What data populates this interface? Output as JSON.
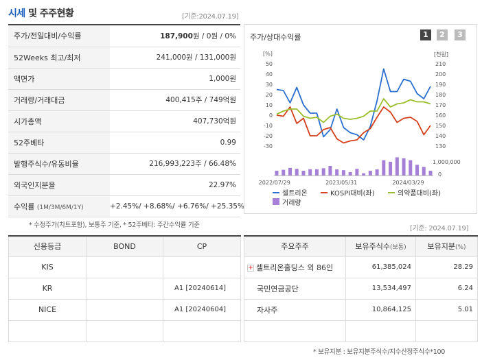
{
  "header": {
    "title_part1": "시세",
    "title_part2": " 및 주주현황",
    "date": "[기준:2024.07.19]"
  },
  "info": [
    {
      "label": "주가/전일대비/수익률",
      "value_bold": "187,900",
      "value_rest": "원 / 0원 / 0%"
    },
    {
      "label": "52Weeks 최고/최저",
      "value": "241,000원 / 131,000원"
    },
    {
      "label": "액면가",
      "value": "1,000원"
    },
    {
      "label": "거래량/거래대금",
      "value": "400,415주 / 749억원"
    },
    {
      "label": "시가총액",
      "value": "407,730억원"
    },
    {
      "label": "52주베타",
      "value": "0.99"
    },
    {
      "label": "발행주식수/유동비율",
      "value": "216,993,223주 / 66.48%"
    },
    {
      "label": "외국인지분율",
      "value": "22.97%"
    },
    {
      "label": "수익률",
      "label_small": "(1M/3M/6M/1Y)",
      "value": "+2.45%/ +8.68%/ +6.76%/ +25.35%"
    }
  ],
  "footnote": "* 수정주가(차트포함), 보통주 기준, * 52주베타: 주간수익률 기준",
  "chart": {
    "title": "주가/상대수익률",
    "tabs": [
      "1",
      "2",
      "3"
    ],
    "left_unit": "[%]",
    "right_unit": "[천원]",
    "volume_label": "1,000,000",
    "volume_zero": "0",
    "left_ticks": [
      "50",
      "40",
      "30",
      "20",
      "10",
      "0",
      "-10",
      "-20",
      "-30"
    ],
    "right_ticks": [
      "210",
      "200",
      "190",
      "180",
      "170",
      "160",
      "150",
      "140",
      "130"
    ],
    "x_ticks": [
      "2022/07/29",
      "2023/05/31",
      "2024/03/29"
    ],
    "legend": [
      "셀트리온",
      "KOSPI대비(좌)",
      "의약품대비(좌)",
      "거래량"
    ],
    "colors": {
      "price": "#2a6fcf",
      "kospi": "#d4401a",
      "pharma": "#9bbf2a",
      "volume": "#a67fd6"
    }
  },
  "chart_data": {
    "type": "line",
    "series": [
      {
        "name": "셀트리온",
        "axis": "right",
        "values": [
          185,
          184,
          172,
          187,
          170,
          162,
          162,
          139,
          146,
          166,
          148,
          143,
          141,
          136,
          149,
          174,
          205,
          183,
          183,
          195,
          193,
          181,
          176,
          188
        ]
      },
      {
        "name": "KOSPI대비(좌)",
        "axis": "left",
        "values": [
          0,
          -1,
          8,
          -8,
          -3,
          -20,
          -20,
          -14,
          -12,
          -23,
          -27,
          -25,
          -24,
          -17,
          -13,
          -2,
          8,
          3,
          -7,
          -3,
          -2,
          -6,
          -19,
          -10
        ]
      },
      {
        "name": "의약품대비(좌)",
        "axis": "left",
        "values": [
          1,
          4,
          6,
          6,
          -1,
          -3,
          -2,
          -7,
          -1,
          1,
          -3,
          -4,
          -3,
          -1,
          4,
          4,
          16,
          8,
          11,
          12,
          15,
          13,
          13,
          11
        ]
      },
      {
        "name": "거래량",
        "axis": "volume",
        "values": [
          250000,
          300000,
          400000,
          350000,
          250000,
          330000,
          330000,
          380000,
          500000,
          320000,
          280000,
          180000,
          350000,
          120000,
          250000,
          320000,
          800000,
          720000,
          950000,
          900000,
          800000,
          560000,
          450000,
          250000
        ]
      }
    ],
    "left_ylim": [
      -30,
      50
    ],
    "right_ylim": [
      130,
      210
    ],
    "x_labels": [
      "2022/07/29",
      "2023/05/31",
      "2024/03/29"
    ]
  },
  "date2": "[기준: 2024.07.19]",
  "credit": {
    "headers": [
      "신용등급",
      "BOND",
      "CP"
    ],
    "rows": [
      {
        "agency": "KIS",
        "bond": "",
        "cp": ""
      },
      {
        "agency": "KR",
        "bond": "",
        "cp": "A1  [20240614]"
      },
      {
        "agency": "NICE",
        "bond": "",
        "cp": "A1  [20240604]"
      },
      {
        "agency": "",
        "bond": "",
        "cp": ""
      }
    ]
  },
  "holders": {
    "headers": [
      "주요주주",
      "보유주식수",
      "(보통)",
      "보유지분",
      "(%)"
    ],
    "rows": [
      {
        "name": "셀트리온홀딩스 외 86인",
        "shares": "61,385,024",
        "pct": "28.29",
        "expand": "+"
      },
      {
        "name": "국민연금공단",
        "shares": "13,534,497",
        "pct": "6.24"
      },
      {
        "name": "자사주",
        "shares": "10,864,125",
        "pct": "5.01"
      },
      {
        "name": "",
        "shares": "",
        "pct": ""
      }
    ]
  },
  "footnote2": "* 보유지분 : 보유지분주식수/지수산정주식수*100"
}
